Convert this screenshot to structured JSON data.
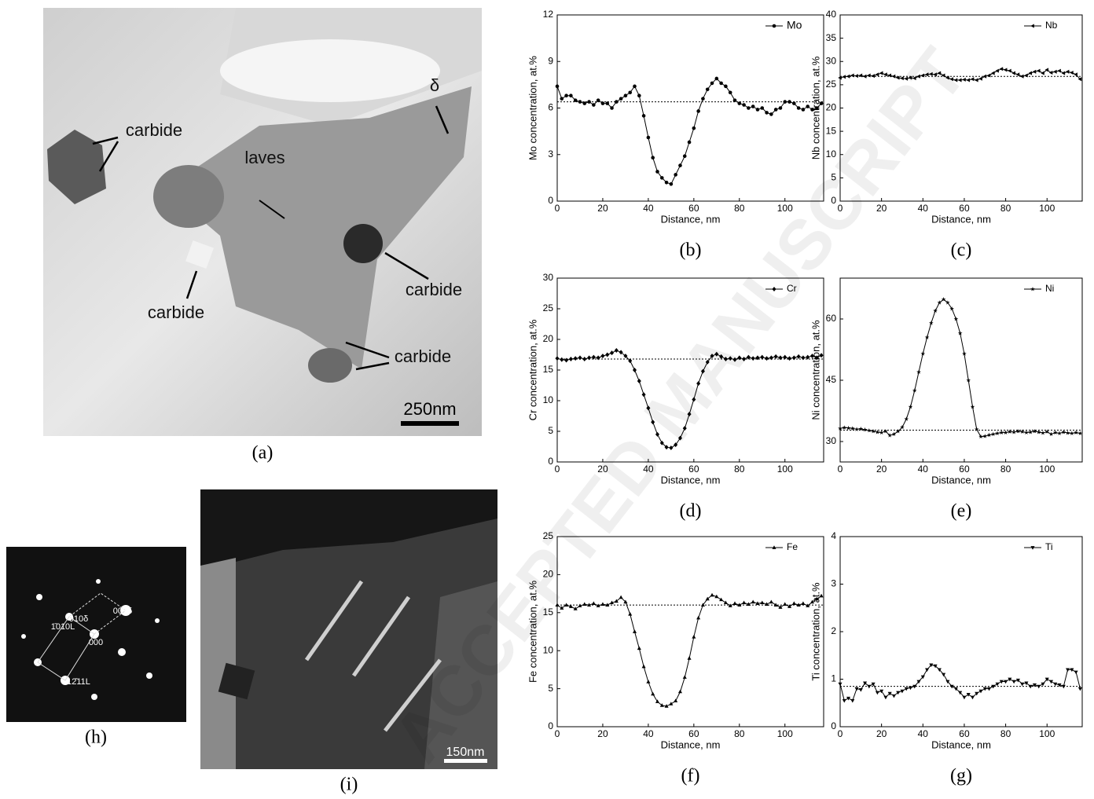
{
  "chart_data": [
    {
      "type": "line",
      "caption": "(b)",
      "xlabel": "Distance, nm",
      "ylabel": "Mo concentration, at.%",
      "xlim": [
        0,
        117
      ],
      "xticks": [
        0,
        20,
        40,
        60,
        80,
        100
      ],
      "ylim": [
        0,
        12
      ],
      "yticks": [
        0,
        3,
        6,
        9,
        12
      ],
      "legend": "upper right",
      "reference": 6.4,
      "x": [
        0,
        2,
        4,
        6,
        8,
        10,
        12,
        14,
        16,
        18,
        20,
        22,
        24,
        26,
        28,
        30,
        32,
        34,
        36,
        38,
        40,
        42,
        44,
        46,
        48,
        50,
        52,
        54,
        56,
        58,
        60,
        62,
        64,
        66,
        68,
        70,
        72,
        74,
        76,
        78,
        80,
        82,
        84,
        86,
        88,
        90,
        92,
        94,
        96,
        98,
        100,
        102,
        104,
        106,
        108,
        110,
        112,
        114,
        116
      ],
      "series": [
        {
          "name": "Mo",
          "color": "#000000",
          "marker": "circle",
          "values": [
            7.4,
            6.6,
            6.8,
            6.8,
            6.5,
            6.4,
            6.3,
            6.4,
            6.2,
            6.5,
            6.3,
            6.3,
            6.0,
            6.4,
            6.6,
            6.8,
            7.0,
            7.4,
            6.8,
            5.5,
            4.1,
            2.8,
            1.9,
            1.5,
            1.2,
            1.1,
            1.7,
            2.3,
            2.9,
            3.8,
            4.7,
            5.8,
            6.6,
            7.2,
            7.6,
            7.9,
            7.6,
            7.4,
            7.0,
            6.5,
            6.3,
            6.2,
            6.0,
            6.1,
            5.9,
            6.0,
            5.7,
            5.6,
            5.9,
            6.0,
            6.4,
            6.4,
            6.3,
            6.0,
            5.9,
            6.1,
            5.9,
            6.0,
            6.3
          ]
        }
      ]
    },
    {
      "type": "line",
      "caption": "(c)",
      "xlabel": "Distance, nm",
      "ylabel": "Nb concentration, at.%",
      "xlim": [
        0,
        117
      ],
      "xticks": [
        0,
        20,
        40,
        60,
        80,
        100
      ],
      "ylim": [
        0,
        40
      ],
      "yticks": [
        0,
        5,
        10,
        15,
        20,
        25,
        30,
        35,
        40
      ],
      "legend": "upper right",
      "reference": 26.8,
      "x": [
        0,
        2,
        4,
        6,
        8,
        10,
        12,
        14,
        16,
        18,
        20,
        22,
        24,
        26,
        28,
        30,
        32,
        34,
        36,
        38,
        40,
        42,
        44,
        46,
        48,
        50,
        52,
        54,
        56,
        58,
        60,
        62,
        64,
        66,
        68,
        70,
        72,
        74,
        76,
        78,
        80,
        82,
        84,
        86,
        88,
        90,
        92,
        94,
        96,
        98,
        100,
        102,
        104,
        106,
        108,
        110,
        112,
        114,
        116
      ],
      "series": [
        {
          "name": "Nb",
          "color": "#000000",
          "marker": "triangle-left",
          "values": [
            26.5,
            26.7,
            26.8,
            27.0,
            26.9,
            27.0,
            26.8,
            27.0,
            26.9,
            27.2,
            27.5,
            27.2,
            27.0,
            26.8,
            26.5,
            26.4,
            26.3,
            26.5,
            26.4,
            26.8,
            27.0,
            27.2,
            27.3,
            27.2,
            27.5,
            27.0,
            26.5,
            26.2,
            26.0,
            26.0,
            26.1,
            26.0,
            26.2,
            26.0,
            26.3,
            26.8,
            27.0,
            27.5,
            28.0,
            28.4,
            28.2,
            28.0,
            27.5,
            27.2,
            26.8,
            27.0,
            27.5,
            27.8,
            28.0,
            27.5,
            28.2,
            27.6,
            27.8,
            28.0,
            27.5,
            27.8,
            27.6,
            27.2,
            26.2
          ]
        }
      ]
    },
    {
      "type": "line",
      "caption": "(d)",
      "xlabel": "Distance, nm",
      "ylabel": "Cr concentration, at.%",
      "xlim": [
        0,
        117
      ],
      "xticks": [
        0,
        20,
        40,
        60,
        80,
        100
      ],
      "ylim": [
        0,
        30
      ],
      "yticks": [
        0,
        5,
        10,
        15,
        20,
        25,
        30
      ],
      "legend": "upper right",
      "reference": 16.8,
      "x": [
        0,
        2,
        4,
        6,
        8,
        10,
        12,
        14,
        16,
        18,
        20,
        22,
        24,
        26,
        28,
        30,
        32,
        34,
        36,
        38,
        40,
        42,
        44,
        46,
        48,
        50,
        52,
        54,
        56,
        58,
        60,
        62,
        64,
        66,
        68,
        70,
        72,
        74,
        76,
        78,
        80,
        82,
        84,
        86,
        88,
        90,
        92,
        94,
        96,
        98,
        100,
        102,
        104,
        106,
        108,
        110,
        112,
        114,
        116
      ],
      "series": [
        {
          "name": "Cr",
          "color": "#000000",
          "marker": "diamond",
          "values": [
            16.9,
            16.7,
            16.6,
            16.8,
            16.9,
            17.0,
            16.8,
            17.0,
            17.1,
            17.0,
            17.3,
            17.5,
            17.8,
            18.2,
            17.9,
            17.3,
            16.5,
            15.0,
            13.2,
            11.0,
            8.8,
            6.5,
            4.5,
            3.1,
            2.4,
            2.3,
            2.8,
            3.9,
            5.5,
            7.8,
            10.2,
            12.8,
            14.8,
            16.3,
            17.3,
            17.6,
            17.2,
            16.8,
            16.9,
            16.7,
            17.0,
            16.8,
            17.1,
            16.9,
            17.0,
            17.1,
            16.9,
            17.0,
            17.2,
            17.0,
            17.1,
            16.9,
            17.0,
            17.2,
            17.0,
            17.1,
            17.3,
            17.0,
            17.4
          ]
        }
      ]
    },
    {
      "type": "line",
      "caption": "(e)",
      "xlabel": "Distance, nm",
      "ylabel": "Ni concentration, at.%",
      "xlim": [
        0,
        117
      ],
      "xticks": [
        0,
        20,
        40,
        60,
        80,
        100
      ],
      "ylim": [
        25,
        70
      ],
      "yticks": [
        30,
        45,
        60
      ],
      "legend": "upper right",
      "reference": 32.8,
      "x": [
        0,
        2,
        4,
        6,
        8,
        10,
        12,
        14,
        16,
        18,
        20,
        22,
        24,
        26,
        28,
        30,
        32,
        34,
        36,
        38,
        40,
        42,
        44,
        46,
        48,
        50,
        52,
        54,
        56,
        58,
        60,
        62,
        64,
        66,
        68,
        70,
        72,
        74,
        76,
        78,
        80,
        82,
        84,
        86,
        88,
        90,
        92,
        94,
        96,
        98,
        100,
        102,
        104,
        106,
        108,
        110,
        112,
        114,
        116
      ],
      "series": [
        {
          "name": "Ni",
          "color": "#000000",
          "marker": "star",
          "values": [
            33.2,
            33.4,
            33.3,
            33.2,
            33.0,
            33.1,
            32.9,
            32.7,
            32.5,
            32.3,
            32.2,
            32.5,
            31.5,
            31.8,
            32.5,
            33.5,
            35.5,
            38.5,
            42.5,
            47.0,
            51.5,
            55.5,
            59.0,
            62.0,
            64.0,
            64.8,
            64.0,
            62.5,
            60.0,
            56.5,
            51.5,
            45.0,
            38.5,
            33.0,
            31.2,
            31.3,
            31.6,
            31.8,
            32.0,
            32.2,
            32.2,
            32.4,
            32.3,
            32.5,
            32.4,
            32.2,
            32.3,
            32.5,
            32.3,
            32.1,
            32.4,
            31.8,
            32.2,
            32.0,
            32.3,
            32.1,
            32.0,
            32.2,
            32.0
          ]
        }
      ]
    },
    {
      "type": "line",
      "caption": "(f)",
      "xlabel": "Distance, nm",
      "ylabel": "Fe concentration, at.%",
      "xlim": [
        0,
        117
      ],
      "xticks": [
        0,
        20,
        40,
        60,
        80,
        100
      ],
      "ylim": [
        0,
        25
      ],
      "yticks": [
        0,
        5,
        10,
        15,
        20,
        25
      ],
      "legend": "upper right",
      "reference": 16.0,
      "x": [
        0,
        2,
        4,
        6,
        8,
        10,
        12,
        14,
        16,
        18,
        20,
        22,
        24,
        26,
        28,
        30,
        32,
        34,
        36,
        38,
        40,
        42,
        44,
        46,
        48,
        50,
        52,
        54,
        56,
        58,
        60,
        62,
        64,
        66,
        68,
        70,
        72,
        74,
        76,
        78,
        80,
        82,
        84,
        86,
        88,
        90,
        92,
        94,
        96,
        98,
        100,
        102,
        104,
        106,
        108,
        110,
        112,
        114,
        116
      ],
      "series": [
        {
          "name": "Fe",
          "color": "#000000",
          "marker": "triangle-up",
          "values": [
            16.0,
            15.6,
            16.0,
            15.8,
            15.5,
            15.9,
            16.1,
            16.0,
            16.2,
            15.9,
            16.1,
            16.0,
            16.3,
            16.5,
            17.0,
            16.4,
            14.8,
            12.5,
            10.3,
            7.9,
            5.9,
            4.3,
            3.3,
            2.8,
            2.7,
            3.0,
            3.4,
            4.6,
            6.5,
            9.0,
            11.8,
            14.3,
            16.0,
            16.8,
            17.3,
            17.1,
            16.7,
            16.3,
            15.9,
            16.2,
            16.0,
            16.3,
            16.1,
            16.4,
            16.2,
            16.3,
            16.1,
            16.4,
            16.0,
            15.7,
            16.1,
            15.8,
            16.2,
            16.0,
            16.2,
            15.9,
            16.4,
            16.8,
            17.2
          ]
        }
      ]
    },
    {
      "type": "line",
      "caption": "(g)",
      "xlabel": "Distance, nm",
      "ylabel": "Ti concentration, at.%",
      "xlim": [
        0,
        117
      ],
      "xticks": [
        0,
        20,
        40,
        60,
        80,
        100
      ],
      "ylim": [
        0,
        4
      ],
      "yticks": [
        0,
        1,
        2,
        3,
        4
      ],
      "legend": "upper right",
      "reference": 0.85,
      "x": [
        0,
        2,
        4,
        6,
        8,
        10,
        12,
        14,
        16,
        18,
        20,
        22,
        24,
        26,
        28,
        30,
        32,
        34,
        36,
        38,
        40,
        42,
        44,
        46,
        48,
        50,
        52,
        54,
        56,
        58,
        60,
        62,
        64,
        66,
        68,
        70,
        72,
        74,
        76,
        78,
        80,
        82,
        84,
        86,
        88,
        90,
        92,
        94,
        96,
        98,
        100,
        102,
        104,
        106,
        108,
        110,
        112,
        114,
        116
      ],
      "series": [
        {
          "name": "Ti",
          "color": "#000000",
          "marker": "triangle-down",
          "values": [
            0.9,
            0.55,
            0.6,
            0.55,
            0.8,
            0.78,
            0.92,
            0.85,
            0.9,
            0.72,
            0.75,
            0.62,
            0.7,
            0.65,
            0.72,
            0.75,
            0.8,
            0.82,
            0.85,
            0.95,
            1.05,
            1.2,
            1.3,
            1.28,
            1.2,
            1.1,
            0.95,
            0.85,
            0.8,
            0.72,
            0.62,
            0.68,
            0.62,
            0.7,
            0.75,
            0.8,
            0.8,
            0.85,
            0.9,
            0.95,
            0.95,
            1.0,
            0.95,
            0.98,
            0.9,
            0.92,
            0.85,
            0.88,
            0.85,
            0.9,
            1.0,
            0.95,
            0.9,
            0.88,
            0.85,
            1.2,
            1.2,
            1.15,
            0.8
          ]
        }
      ]
    }
  ],
  "images": [
    {
      "caption": "(a)",
      "scale_bar": "250nm",
      "labels": [
        "carbide",
        "carbide",
        "carbide",
        "carbide",
        "laves",
        "δ"
      ]
    },
    {
      "caption": "(h)",
      "labels": [
        "001δ",
        "010δ",
        "1̄010L",
        "000",
        "12̄11L"
      ]
    },
    {
      "caption": "(i)",
      "scale_bar": "150nm"
    }
  ],
  "watermark": "ACCEPTED MANUSCRIPT"
}
